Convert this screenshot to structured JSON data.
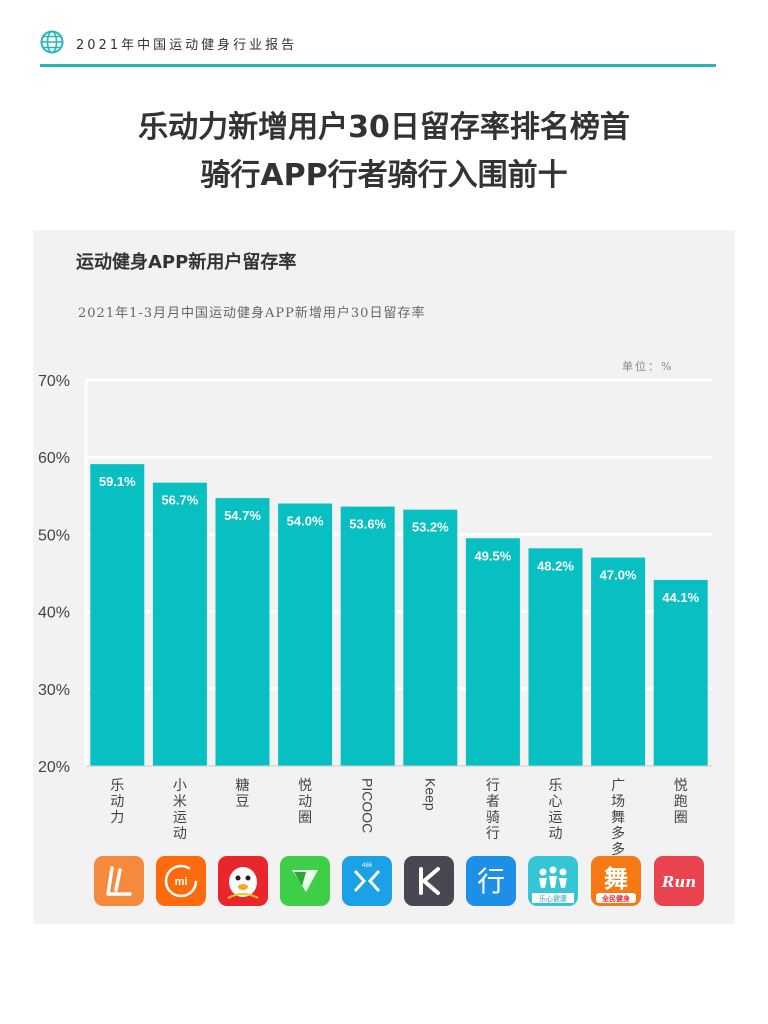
{
  "header": {
    "report_title": "2021年中国运动健身行业报告",
    "accent_color": "#27b5bd",
    "icon": "globe-icon"
  },
  "headline": {
    "line1": "乐动力新增用户30日留存率排名榜首",
    "line2": "骑行APP行者骑行入围前十"
  },
  "chart_data": {
    "type": "bar",
    "title": "运动健身APP新用户留存率",
    "subtitle": "2021年1-3月月中国运动健身APP新增用户30日留存率",
    "unit": "单位：%",
    "categories": [
      "乐动力",
      "小米运动",
      "糖豆",
      "悦动圈",
      "PICOOC",
      "Keep",
      "行者骑行",
      "乐心运动",
      "广场舞多多",
      "悦跑圈"
    ],
    "values": [
      59.1,
      56.7,
      54.7,
      54.0,
      53.6,
      53.2,
      49.5,
      48.2,
      47.0,
      44.1
    ],
    "data_labels": [
      "59.1%",
      "56.7%",
      "54.7%",
      "54.0%",
      "53.6%",
      "53.2%",
      "49.5%",
      "48.2%",
      "47.0%",
      "44.1%"
    ],
    "ylim": [
      20,
      70
    ],
    "yticks": [
      "20%",
      "30%",
      "40%",
      "50%",
      "60%",
      "70%"
    ],
    "grid": true,
    "bar_color": "#08bfc1"
  },
  "app_icons": [
    {
      "name": "ledongli-icon",
      "color": "#f58a3c"
    },
    {
      "name": "mi-fit-icon",
      "color": "#ff6a0c",
      "text": "mi"
    },
    {
      "name": "tangdou-icon",
      "color": "#e8262c"
    },
    {
      "name": "yuedongquan-icon",
      "color": "#3ecf49"
    },
    {
      "name": "picooc-icon",
      "color": "#1aa1e6",
      "text": "486"
    },
    {
      "name": "keep-icon",
      "color": "#4b4752"
    },
    {
      "name": "xingzhe-icon",
      "color": "#1e8fe6"
    },
    {
      "name": "lexin-icon",
      "color": "#35c6d6",
      "text": "乐心健康"
    },
    {
      "name": "guangchangwu-icon",
      "color": "#f57a14",
      "text": "全民健身"
    },
    {
      "name": "yuepaoquan-icon",
      "color": "#e8434f",
      "text": "Run"
    }
  ]
}
